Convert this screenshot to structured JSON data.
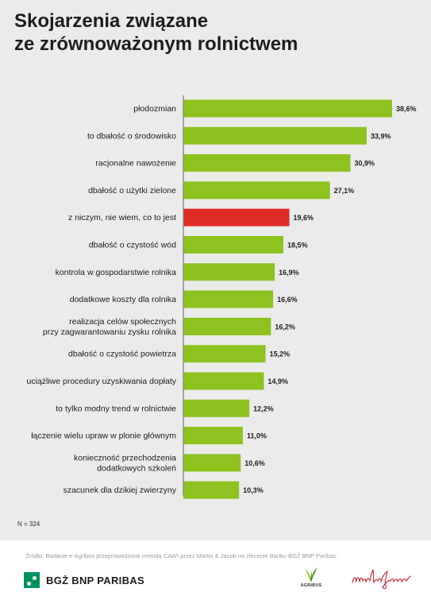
{
  "title_lines": [
    "Skojarzenia związane",
    "ze zrównoważonym rolnictwem"
  ],
  "sample_note": "N = 324",
  "source_note": "Źródło: Badanie e-Agribus przeprowadzone metodą CAWI przez Martin & Jacob na zlecenie Banku BGŻ BNP Paribas.",
  "logos": {
    "bgz_text": "BGŻ BNP PARIBAS",
    "agribus_text": "AGRIBUS"
  },
  "colors": {
    "bar": "#8dc21f",
    "highlight": "#e02b27",
    "axis": "#8a8a8a",
    "panel": "#ebebeb"
  },
  "chart_data": {
    "type": "bar",
    "orientation": "horizontal",
    "unit": "%",
    "highlight_index": 4,
    "categories": [
      [
        "płodozmian"
      ],
      [
        "to dbałość o środowisko"
      ],
      [
        "racjonalne nawożenie"
      ],
      [
        "dbałość o użytki zielone"
      ],
      [
        "z niczym, nie wiem, co to jest"
      ],
      [
        "dbałość o czystość wód"
      ],
      [
        "kontrola w gospodarstwie rolnika"
      ],
      [
        "dodatkowe koszty dla rolnika"
      ],
      [
        "realizacja celów społecznych",
        "przy zagwarantowaniu zysku rolnika"
      ],
      [
        "dbałość o czystość powietrza"
      ],
      [
        "uciążliwe procedury uzyskiwania dopłaty"
      ],
      [
        "to tylko modny trend w rolnictwie"
      ],
      [
        "łączenie wielu upraw w plonie głównym"
      ],
      [
        "konieczność przechodzenia",
        "dodatkowych szkoleń"
      ],
      [
        "szacunek dla dzikiej zwierzyny"
      ]
    ],
    "values": [
      38.6,
      33.9,
      30.9,
      27.1,
      19.6,
      18.5,
      16.9,
      16.6,
      16.2,
      15.2,
      14.9,
      12.2,
      11.0,
      10.6,
      10.3
    ],
    "value_labels": [
      "38,6%",
      "33,9%",
      "30,9%",
      "27,1%",
      "19,6%",
      "18,5%",
      "16,9%",
      "16,6%",
      "16,2%",
      "15,2%",
      "14,9%",
      "12,2%",
      "11,0%",
      "10,6%",
      "10,3%"
    ],
    "xlim": [
      0,
      38.6
    ]
  }
}
